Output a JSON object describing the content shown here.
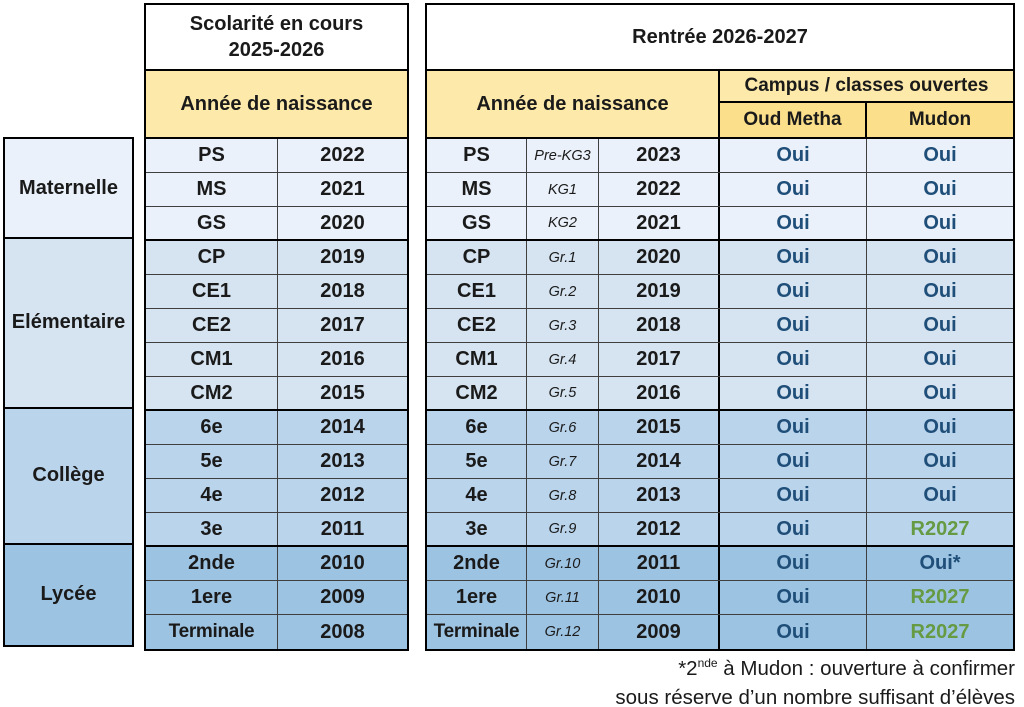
{
  "left_sections": [
    {
      "label": "Maternelle",
      "rows": 3
    },
    {
      "label": "Elémentaire",
      "rows": 5
    },
    {
      "label": "Collège",
      "rows": 4
    },
    {
      "label": "Lycée",
      "rows": 3
    }
  ],
  "current_table": {
    "title_line1": "Scolarité en cours",
    "title_line2": "2025-2026",
    "header": "Année de naissance",
    "rows": [
      {
        "class": "PS",
        "year": "2022",
        "section": 0
      },
      {
        "class": "MS",
        "year": "2021",
        "section": 0
      },
      {
        "class": "GS",
        "year": "2020",
        "section": 0
      },
      {
        "class": "CP",
        "year": "2019",
        "section": 1
      },
      {
        "class": "CE1",
        "year": "2018",
        "section": 1
      },
      {
        "class": "CE2",
        "year": "2017",
        "section": 1
      },
      {
        "class": "CM1",
        "year": "2016",
        "section": 1
      },
      {
        "class": "CM2",
        "year": "2015",
        "section": 1
      },
      {
        "class": "6e",
        "year": "2014",
        "section": 2
      },
      {
        "class": "5e",
        "year": "2013",
        "section": 2
      },
      {
        "class": "4e",
        "year": "2012",
        "section": 2
      },
      {
        "class": "3e",
        "year": "2011",
        "section": 2
      },
      {
        "class": "2nde",
        "year": "2010",
        "section": 3
      },
      {
        "class": "1ere",
        "year": "2009",
        "section": 3
      },
      {
        "class": "Terminale",
        "year": "2008",
        "section": 3
      }
    ]
  },
  "next_table": {
    "title": "Rentrée 2026-2027",
    "header_annee": "Année de naissance",
    "header_campus": "Campus / classes ouvertes",
    "campus_columns": [
      "Oud Metha",
      "Mudon"
    ],
    "rows": [
      {
        "class": "PS",
        "grade_en": "Pre-KG3",
        "year": "2023",
        "oud_metha": "Oui",
        "mudon": "Oui",
        "section": 0
      },
      {
        "class": "MS",
        "grade_en": "KG1",
        "year": "2022",
        "oud_metha": "Oui",
        "mudon": "Oui",
        "section": 0
      },
      {
        "class": "GS",
        "grade_en": "KG2",
        "year": "2021",
        "oud_metha": "Oui",
        "mudon": "Oui",
        "section": 0
      },
      {
        "class": "CP",
        "grade_en": "Gr.1",
        "year": "2020",
        "oud_metha": "Oui",
        "mudon": "Oui",
        "section": 1
      },
      {
        "class": "CE1",
        "grade_en": "Gr.2",
        "year": "2019",
        "oud_metha": "Oui",
        "mudon": "Oui",
        "section": 1
      },
      {
        "class": "CE2",
        "grade_en": "Gr.3",
        "year": "2018",
        "oud_metha": "Oui",
        "mudon": "Oui",
        "section": 1
      },
      {
        "class": "CM1",
        "grade_en": "Gr.4",
        "year": "2017",
        "oud_metha": "Oui",
        "mudon": "Oui",
        "section": 1
      },
      {
        "class": "CM2",
        "grade_en": "Gr.5",
        "year": "2016",
        "oud_metha": "Oui",
        "mudon": "Oui",
        "section": 1
      },
      {
        "class": "6e",
        "grade_en": "Gr.6",
        "year": "2015",
        "oud_metha": "Oui",
        "mudon": "Oui",
        "section": 2
      },
      {
        "class": "5e",
        "grade_en": "Gr.7",
        "year": "2014",
        "oud_metha": "Oui",
        "mudon": "Oui",
        "section": 2
      },
      {
        "class": "4e",
        "grade_en": "Gr.8",
        "year": "2013",
        "oud_metha": "Oui",
        "mudon": "Oui",
        "section": 2
      },
      {
        "class": "3e",
        "grade_en": "Gr.9",
        "year": "2012",
        "oud_metha": "Oui",
        "mudon": "R2027",
        "section": 2
      },
      {
        "class": "2nde",
        "grade_en": "Gr.10",
        "year": "2011",
        "oud_metha": "Oui",
        "mudon": "Oui*",
        "section": 3
      },
      {
        "class": "1ere",
        "grade_en": "Gr.11",
        "year": "2010",
        "oud_metha": "Oui",
        "mudon": "R2027",
        "section": 3
      },
      {
        "class": "Terminale",
        "grade_en": "Gr.12",
        "year": "2009",
        "oud_metha": "Oui",
        "mudon": "R2027",
        "section": 3
      }
    ]
  },
  "footnote": {
    "line1_prefix": "*2",
    "line1_sup": "nde",
    "line1_rest": " à Mudon : ouverture à confirmer",
    "line2": "sous réserve d’un nombre suffisant d’élèves"
  },
  "colors": {
    "section_bg": [
      "#EAF1FA",
      "#D6E4F1",
      "#BAD4EC",
      "#9DC3E2"
    ],
    "header_yellow": "#FDE9A9",
    "subheader_yellow": "#FBDF8B",
    "oui_navy": "#1F4E79",
    "r2027_green": "#669A43",
    "grid_line": "#3f3f3f",
    "border_black": "#000000"
  }
}
